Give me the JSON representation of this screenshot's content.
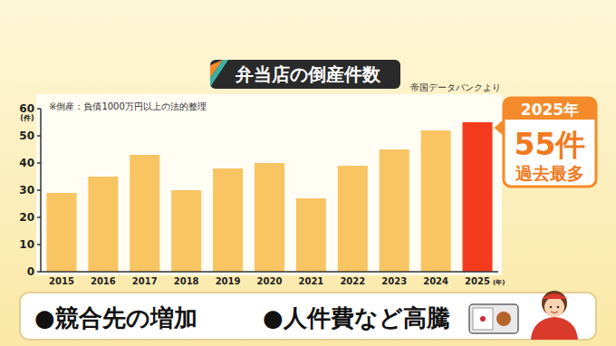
{
  "chart_data": {
    "type": "bar",
    "title": "弁当店の倒産件数",
    "source": "帝国データバンクより",
    "note": "※倒産：負債1000万円以上の法的整理",
    "categories": [
      "2015",
      "2016",
      "2017",
      "2018",
      "2019",
      "2020",
      "2021",
      "2022",
      "2023",
      "2024",
      "2025"
    ],
    "values": [
      29,
      35,
      43,
      30,
      38,
      40,
      27,
      39,
      45,
      52,
      55
    ],
    "colors": [
      "#f9c462",
      "#f9c462",
      "#f9c462",
      "#f9c462",
      "#f9c462",
      "#f9c462",
      "#f9c462",
      "#f9c462",
      "#f9c462",
      "#f9c462",
      "#f43b1e"
    ],
    "y_label": "(件)",
    "x_label": "(年)",
    "ylim": [
      0,
      60
    ],
    "yticks": [
      0,
      10,
      20,
      30,
      40,
      50,
      60
    ],
    "grid": false,
    "callout": {
      "header": "2025年",
      "label": "55件",
      "text": "過去最多"
    },
    "points": [
      "●競合先の増加",
      "●人件費など高騰"
    ]
  }
}
